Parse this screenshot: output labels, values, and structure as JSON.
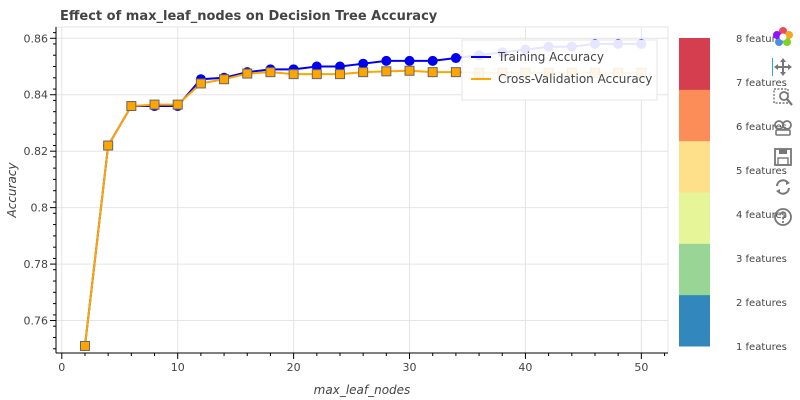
{
  "chart_data": {
    "type": "line",
    "title": "Effect of max_leaf_nodes on Decision Tree Accuracy",
    "xlabel": "max_leaf_nodes",
    "ylabel": "Accuracy",
    "xlim": [
      -0.5,
      52.3
    ],
    "ylim": [
      0.7485,
      0.864
    ],
    "xticks": [
      0,
      10,
      20,
      30,
      40,
      50
    ],
    "yticks": [
      0.76,
      0.78,
      0.8,
      0.82,
      0.84,
      0.86
    ],
    "ytick_labels": [
      "0.76",
      "0.78",
      "0.8",
      "0.82",
      "0.84",
      "0.86"
    ],
    "grid": true,
    "legend_position": "top-right",
    "x": [
      2,
      4,
      6,
      8,
      10,
      12,
      14,
      16,
      18,
      20,
      22,
      24,
      26,
      28,
      30,
      32,
      34,
      36,
      38,
      40,
      42,
      44,
      46,
      48,
      50
    ],
    "series": [
      {
        "name": "Training Accuracy",
        "color": "#0000ee",
        "marker": "circle",
        "values": [
          0.751,
          0.822,
          0.836,
          0.836,
          0.836,
          0.8455,
          0.846,
          0.848,
          0.849,
          0.849,
          0.85,
          0.85,
          0.851,
          0.852,
          0.852,
          0.852,
          0.853,
          0.854,
          0.855,
          0.856,
          0.857,
          0.857,
          0.858,
          0.858,
          0.858
        ]
      },
      {
        "name": "Cross-Validation Accuracy",
        "color": "#ffa500",
        "marker": "square",
        "values": [
          0.751,
          0.822,
          0.836,
          0.8365,
          0.8365,
          0.844,
          0.8455,
          0.8475,
          0.848,
          0.8473,
          0.8473,
          0.8473,
          0.848,
          0.8483,
          0.8485,
          0.848,
          0.848,
          0.8478,
          0.8478,
          0.8478,
          0.8478,
          0.8478,
          0.8478,
          0.8478,
          0.8478
        ]
      }
    ],
    "colorbar": {
      "labels": [
        "1 features",
        "2 features",
        "3 features",
        "4 features",
        "5 features",
        "6 features",
        "7 features",
        "8 features"
      ],
      "colors": [
        "#3288bd",
        "#99d594",
        "#e6f598",
        "#fee08b",
        "#fc8d59",
        "#d53e4f"
      ]
    }
  },
  "toolbar": {
    "icons": [
      "bokeh-logo-icon",
      "pan-icon",
      "box-zoom-icon",
      "wheel-zoom-icon",
      "save-icon",
      "reset-icon",
      "help-icon"
    ]
  }
}
